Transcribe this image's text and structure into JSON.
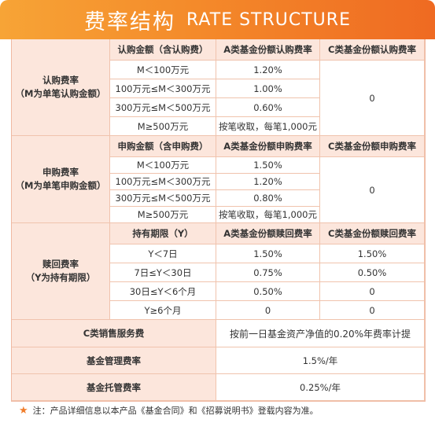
{
  "header": {
    "title_cn": "费率结构",
    "title_en": "RATE STRUCTURE"
  },
  "subscription": {
    "label_line1": "认购费率",
    "label_line2": "（M为单笔认购金额）",
    "columns": [
      "认购金额（含认购费）",
      "A类基金份额认购费率",
      "C类基金份额认购费率"
    ],
    "rows": [
      {
        "range": "M＜100万元",
        "a_rate": "1.20%"
      },
      {
        "range": "100万元≤M＜300万元",
        "a_rate": "1.00%"
      },
      {
        "range": "300万元≤M＜500万元",
        "a_rate": "0.60%"
      },
      {
        "range": "M≥500万元",
        "a_rate": "按笔收取，每笔1,000元"
      }
    ],
    "c_rate": "0"
  },
  "purchase": {
    "label_line1": "申购费率",
    "label_line2": "（M为单笔申购金额）",
    "columns": [
      "申购金额（含申购费）",
      "A类基金份额申购费率",
      "C类基金份额申购费率"
    ],
    "rows": [
      {
        "range": "M＜100万元",
        "a_rate": "1.50%"
      },
      {
        "range": "100万元≤M＜300万元",
        "a_rate": "1.20%"
      },
      {
        "range": "300万元≤M＜500万元",
        "a_rate": "0.80%"
      },
      {
        "range": "M≥500万元",
        "a_rate": "按笔收取，每笔1,000元"
      }
    ],
    "c_rate": "0"
  },
  "redemption": {
    "label_line1": "赎回费率",
    "label_line2": "（Y为持有期限）",
    "columns": [
      "持有期限（Y）",
      "A类基金份额赎回费率",
      "C类基金份额赎回费率"
    ],
    "rows": [
      {
        "range": "Y＜7日",
        "a_rate": "1.50%",
        "c_rate": "1.50%"
      },
      {
        "range": "7日≤Y＜30日",
        "a_rate": "0.75%",
        "c_rate": "0.50%"
      },
      {
        "range": "30日≤Y＜6个月",
        "a_rate": "0.50%",
        "c_rate": "0"
      },
      {
        "range": "Y≥6个月",
        "a_rate": "0",
        "c_rate": "0"
      }
    ]
  },
  "fees": [
    {
      "label": "C类销售服务费",
      "value": "按前一日基金资产净值的0.20%年费率计提"
    },
    {
      "label": "基金管理费率",
      "value": "1.5%/年"
    },
    {
      "label": "基金托管费率",
      "value": "0.25%/年"
    }
  ],
  "footnote": "注：产品详细信息以本产品《基金合同》和《招募说明书》登载内容为准。",
  "colors": {
    "header_start": "#f7a436",
    "header_end": "#ef6a22",
    "pink_cell": "#fce6dc",
    "border": "#f0c3ad",
    "star": "#f07d2b"
  }
}
